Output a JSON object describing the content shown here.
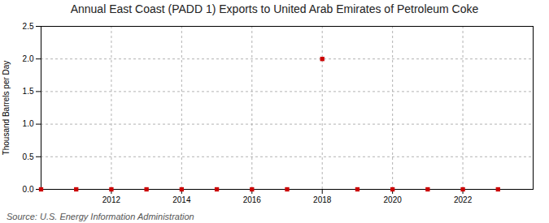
{
  "chart_data": {
    "type": "scatter",
    "title": "Annual East Coast (PADD 1) Exports to United Arab Emirates of Petroleum Coke",
    "ylabel": "Thousand Barrels per Day",
    "source": "Source: U.S. Energy Information Administration",
    "x": [
      2010,
      2011,
      2012,
      2013,
      2014,
      2015,
      2016,
      2017,
      2018,
      2019,
      2020,
      2021,
      2022,
      2023
    ],
    "values": [
      0,
      0,
      0,
      0,
      0,
      0,
      0,
      0,
      2.0,
      0,
      0,
      0,
      0,
      0
    ],
    "color": "#cc0000",
    "marker": "square",
    "xlim": [
      2010.0,
      2024.0
    ],
    "ylim": [
      0,
      2.5
    ],
    "xticks": [
      2012,
      2014,
      2016,
      2018,
      2020,
      2022
    ],
    "yticks": [
      {
        "value": 0.0,
        "label": "0.0"
      },
      0.5,
      {
        "value": 1.0,
        "label": "1.0"
      },
      1.5,
      {
        "value": 2.0,
        "label": "2.0"
      },
      2.5
    ],
    "grid": true
  }
}
